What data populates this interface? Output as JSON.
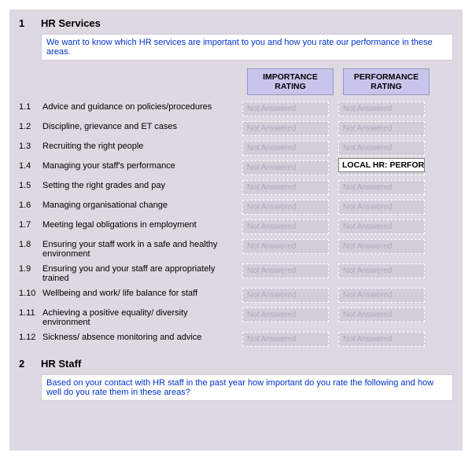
{
  "colors": {
    "page_bg": "#ded8e3",
    "intro_bg": "#ffffff",
    "intro_text": "#0033cc",
    "header_bg": "#c7c5ec",
    "not_answered_text": "#b2a8bc",
    "rating_box_border": "#ffffff"
  },
  "section1": {
    "num": "1",
    "title": "HR Services",
    "intro": "We want to know which HR services are important to you and how you rate our performance in these areas.",
    "header_importance": "IMPORTANCE RATING",
    "header_performance": "PERFORMANCE RATING",
    "not_answered": "Not Answered",
    "overlay": "LOCAL HR: PERFORMANCE",
    "q": [
      {
        "n": "1.1",
        "t": "Advice and guidance on policies/procedures"
      },
      {
        "n": "1.2",
        "t": "Discipline, grievance and ET cases"
      },
      {
        "n": "1.3",
        "t": "Recruiting the right people"
      },
      {
        "n": "1.4",
        "t": "Managing your staff's performance"
      },
      {
        "n": "1.5",
        "t": "Setting the right grades and pay"
      },
      {
        "n": "1.6",
        "t": "Managing organisational change"
      },
      {
        "n": "1.7",
        "t": "Meeting legal obligations in employment"
      },
      {
        "n": "1.8",
        "t": "Ensuring your staff work in a safe and healthy environment"
      },
      {
        "n": "1.9",
        "t": "Ensuring you and your staff are appropriately trained"
      },
      {
        "n": "1.10",
        "t": "Wellbeing and work/ life balance for staff"
      },
      {
        "n": "1.11",
        "t": "Achieving a positive equality/ diversity environment"
      },
      {
        "n": "1.12",
        "t": "Sickness/ absence monitoring and advice"
      }
    ]
  },
  "section2": {
    "num": "2",
    "title": "HR Staff",
    "intro": "Based on your contact with HR staff in the past year how important do you rate the following and how well do you rate them in these areas?"
  }
}
